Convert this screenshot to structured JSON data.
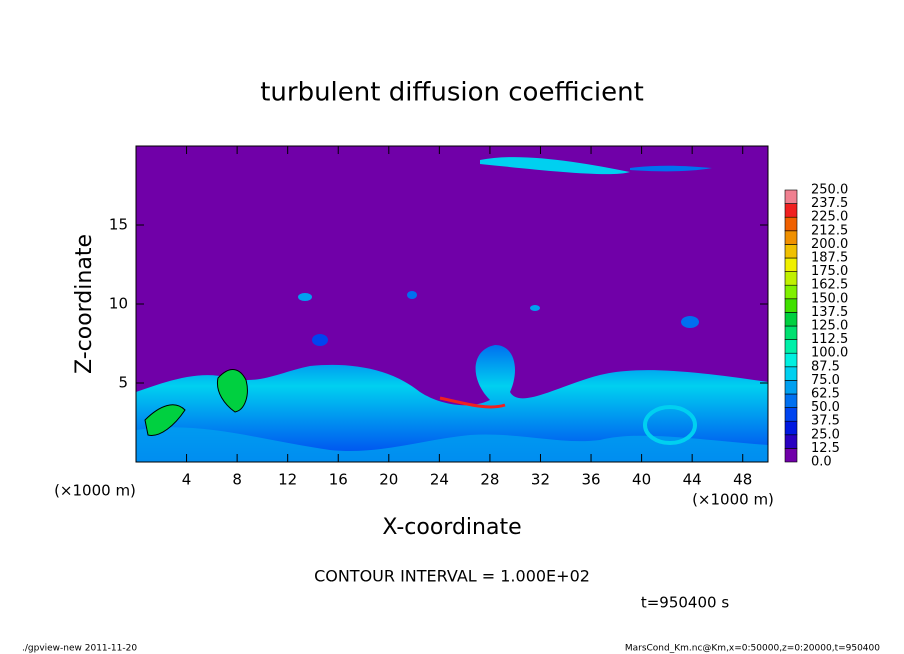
{
  "chart_data": {
    "type": "contour",
    "title": "turbulent diffusion coefficient",
    "xlabel": "X-coordinate",
    "ylabel": "Z-coordinate",
    "xunit": "(×1000 m)",
    "yunit": "(×1000 m)",
    "xlim": [
      0,
      50
    ],
    "xticks": [
      4,
      8,
      12,
      16,
      20,
      24,
      28,
      32,
      36,
      40,
      44,
      48
    ],
    "ylim": [
      0,
      20
    ],
    "yticks": [
      5,
      10,
      15
    ],
    "colorbar": {
      "levels": [
        {
          "value": 0,
          "label": "0.0"
        },
        {
          "value": 12.5,
          "label": "12.5"
        },
        {
          "value": 25,
          "label": "25.0"
        },
        {
          "value": 37.5,
          "label": "37.5"
        },
        {
          "value": 50,
          "label": "50.0"
        },
        {
          "value": 62.5,
          "label": "62.5"
        },
        {
          "value": 75,
          "label": "75.0"
        },
        {
          "value": 87.5,
          "label": "87.5"
        },
        {
          "value": 100,
          "label": "100.0"
        },
        {
          "value": 112.5,
          "label": "112.5"
        },
        {
          "value": 125,
          "label": "125.0"
        },
        {
          "value": 137.5,
          "label": "137.5"
        },
        {
          "value": 150,
          "label": "150.0"
        },
        {
          "value": 162.5,
          "label": "162.5"
        },
        {
          "value": 175,
          "label": "175.0"
        },
        {
          "value": 187.5,
          "label": "187.5"
        },
        {
          "value": 200,
          "label": "200.0"
        },
        {
          "value": 212.5,
          "label": "212.5"
        },
        {
          "value": 225,
          "label": "225.0"
        },
        {
          "value": 237.5,
          "label": "237.5"
        },
        {
          "value": 250,
          "label": "250.0"
        }
      ],
      "colors": [
        "#7000a8",
        "#2a00c0",
        "#0018e0",
        "#0044f0",
        "#0070f0",
        "#00a0f0",
        "#00d0f0",
        "#00f0e0",
        "#00f0a8",
        "#00e070",
        "#00d040",
        "#40e000",
        "#80f000",
        "#c0f000",
        "#f0f000",
        "#f0c000",
        "#f09000",
        "#f06000",
        "#f02020",
        "#f08090"
      ]
    },
    "contour_interval": "CONTOUR INTERVAL = 1.000E+02",
    "time": "t=950400 s",
    "footer_left": "./gpview-new   2011-11-20",
    "footer_right": "MarsCond_Km.nc@Km,x=0:50000,z=0:20000,t=950400"
  }
}
